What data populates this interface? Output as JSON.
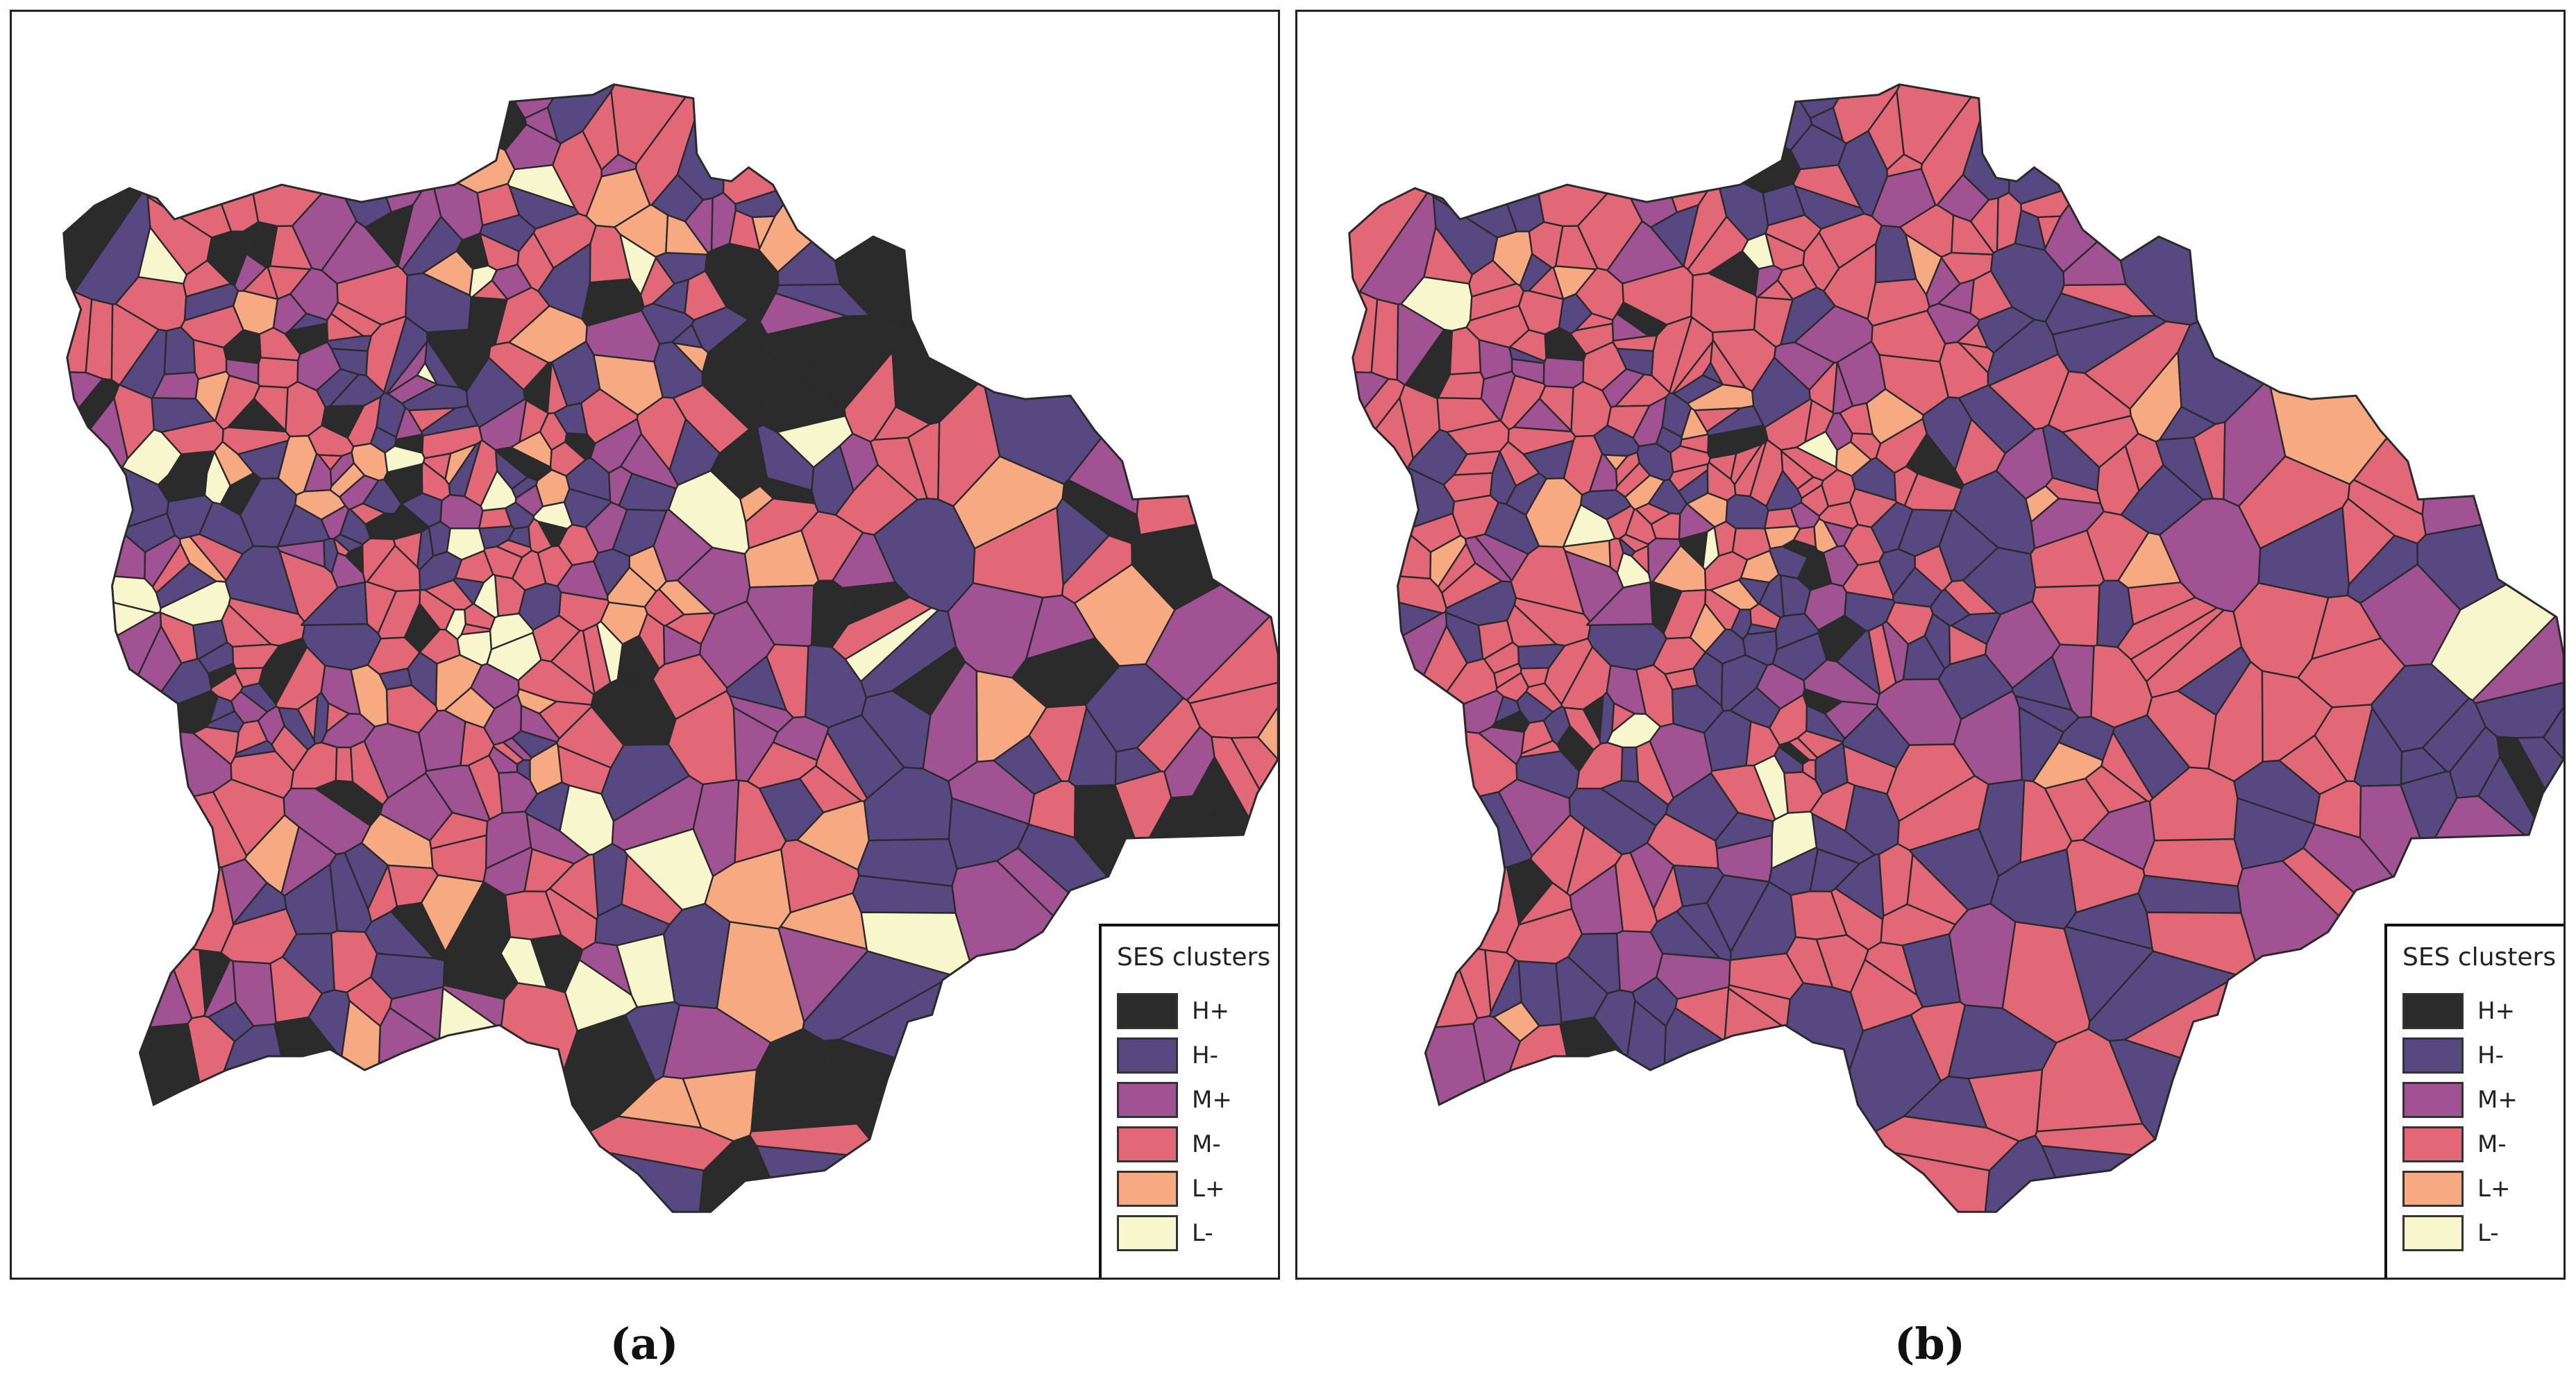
{
  "legend": {
    "title": "SES clusters",
    "items": [
      {
        "label": "H+",
        "color": "#2b2b2b"
      },
      {
        "label": "H-",
        "color": "#574881"
      },
      {
        "label": "M+",
        "color": "#a05293"
      },
      {
        "label": "M-",
        "color": "#e26877"
      },
      {
        "label": "L+",
        "color": "#f7aa82"
      },
      {
        "label": "L-",
        "color": "#f7f6cc"
      }
    ]
  },
  "panels": [
    {
      "caption": "(a)",
      "cluster_shares": {
        "H+": 0.13,
        "H-": 0.27,
        "M+": 0.17,
        "M-": 0.28,
        "L+": 0.09,
        "L-": 0.06
      }
    },
    {
      "caption": "(b)",
      "cluster_shares": {
        "H+": 0.05,
        "H-": 0.3,
        "M+": 0.13,
        "M-": 0.45,
        "L+": 0.05,
        "L-": 0.02
      }
    }
  ]
}
